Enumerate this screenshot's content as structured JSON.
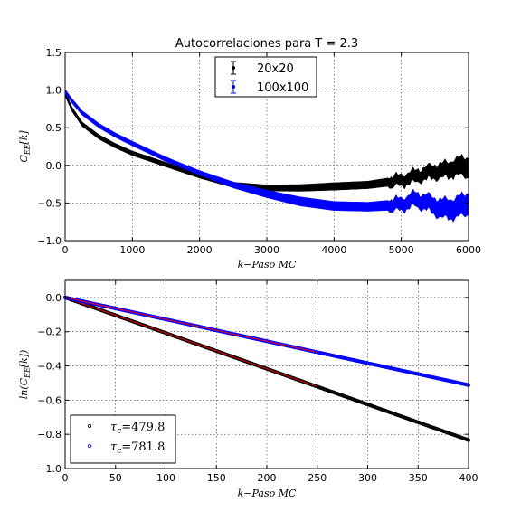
{
  "chart_data": [
    {
      "type": "line",
      "title": "Autocorrelaciones para T = 2.3",
      "xlabel": "k−Paso MC",
      "ylabel": "C_EE[k]",
      "xlim": [
        0,
        6000
      ],
      "ylim": [
        -1.0,
        1.5
      ],
      "xticks": [
        0,
        1000,
        2000,
        3000,
        4000,
        5000,
        6000
      ],
      "yticks": [
        -1.0,
        -0.5,
        0.0,
        0.5,
        1.0,
        1.5
      ],
      "grid": true,
      "legend_position": "top-center",
      "series": [
        {
          "name": "20x20",
          "color": "#000000",
          "style": "error band",
          "x": [
            0,
            100,
            250,
            500,
            750,
            1000,
            1500,
            2000,
            2500,
            3000,
            3500,
            4000,
            4500,
            5000,
            5300,
            5500,
            5700,
            5800,
            6000
          ],
          "y": [
            0.95,
            0.75,
            0.55,
            0.38,
            0.26,
            0.16,
            0.01,
            -0.14,
            -0.26,
            -0.3,
            -0.3,
            -0.28,
            -0.26,
            -0.2,
            -0.12,
            -0.08,
            -0.06,
            -0.02,
            -0.02
          ],
          "err": [
            0.03,
            0.03,
            0.03,
            0.03,
            0.03,
            0.03,
            0.03,
            0.03,
            0.035,
            0.04,
            0.045,
            0.05,
            0.05,
            0.06,
            0.07,
            0.08,
            0.09,
            0.1,
            0.12
          ]
        },
        {
          "name": "100x100",
          "color": "#0000ff",
          "style": "error band",
          "x": [
            0,
            100,
            250,
            500,
            750,
            1000,
            1500,
            2000,
            2500,
            3000,
            3500,
            4000,
            4500,
            5000,
            5200,
            5400,
            5600,
            5800,
            6000
          ],
          "y": [
            0.98,
            0.86,
            0.7,
            0.53,
            0.4,
            0.29,
            0.08,
            -0.1,
            -0.26,
            -0.38,
            -0.48,
            -0.54,
            -0.55,
            -0.52,
            -0.45,
            -0.5,
            -0.58,
            -0.57,
            -0.5
          ],
          "err": [
            0.03,
            0.03,
            0.03,
            0.03,
            0.03,
            0.03,
            0.03,
            0.03,
            0.04,
            0.05,
            0.06,
            0.06,
            0.06,
            0.07,
            0.08,
            0.09,
            0.11,
            0.12,
            0.13
          ]
        }
      ]
    },
    {
      "type": "scatter",
      "xlabel": "k−Paso MC",
      "ylabel": "ln(C_EE[k])",
      "xlim": [
        0,
        400
      ],
      "ylim": [
        -1.0,
        0.1
      ],
      "xticks": [
        0,
        50,
        100,
        150,
        200,
        250,
        300,
        350,
        400
      ],
      "yticks": [
        -1.0,
        -0.8,
        -0.6,
        -0.4,
        -0.2,
        0.0
      ],
      "grid": true,
      "legend_position": "lower-left",
      "series": [
        {
          "name": "τ_c = 479.8",
          "legend_label": "τ",
          "legend_sub": "c",
          "legend_value": "=479.8",
          "color": "#000000",
          "tau": 479.8,
          "fit_color": "#ff0000",
          "fit_range": [
            0,
            250
          ]
        },
        {
          "name": "τ_c = 781.8",
          "legend_label": "τ",
          "legend_sub": "c",
          "legend_value": "=781.8",
          "color": "#0000ff",
          "tau": 781.8,
          "fit_color": "#ff0000",
          "fit_range": [
            0,
            250
          ]
        }
      ]
    }
  ],
  "labels": {
    "title": "Autocorrelaciones para T = 2.3",
    "top_xlabel": "k−Paso MC",
    "bottom_xlabel": "k−Paso MC",
    "top_ylabel_main": "C",
    "top_ylabel_sub": "EE",
    "top_ylabel_arg": "[k]",
    "bottom_ylabel_pre": "ln(C",
    "bottom_ylabel_sub": "EE",
    "bottom_ylabel_post": "[k])",
    "legend1_item1": "20x20",
    "legend1_item2": "100x100"
  }
}
